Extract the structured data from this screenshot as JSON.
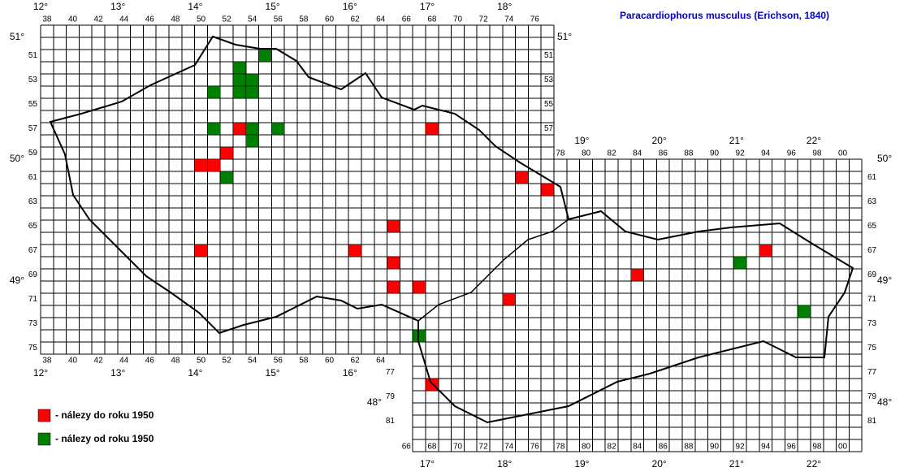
{
  "title": "Paracardiophorus musculus (Erichson, 1840)",
  "columns_top_cz": [
    "38",
    "40",
    "42",
    "44",
    "46",
    "48",
    "50",
    "52",
    "54",
    "56",
    "58",
    "60",
    "62",
    "64",
    "66",
    "68",
    "70",
    "72",
    "74",
    "76"
  ],
  "columns_bottom_cz": [
    "38",
    "40",
    "42",
    "44",
    "46",
    "48",
    "50",
    "52",
    "54",
    "56",
    "58",
    "60",
    "62",
    "64"
  ],
  "columns_top_sk": [
    "78",
    "80",
    "82",
    "84",
    "86",
    "88",
    "90",
    "92",
    "94",
    "96",
    "98",
    "00"
  ],
  "columns_bottom_sk": [
    "66",
    "68",
    "70",
    "72",
    "74",
    "76",
    "78",
    "80",
    "82",
    "84",
    "86",
    "88",
    "90",
    "92",
    "94",
    "96",
    "98",
    "00"
  ],
  "rows_left_cz": [
    "51",
    "53",
    "55",
    "57",
    "59",
    "61",
    "63",
    "65",
    "67",
    "69",
    "71",
    "73",
    "75"
  ],
  "rows_right_cz": [
    "51",
    "53",
    "55",
    "57"
  ],
  "rows_left_sk": [
    "77",
    "79",
    "81"
  ],
  "rows_right_sk": [
    "61",
    "63",
    "65",
    "67",
    "69",
    "71",
    "73",
    "75",
    "77",
    "79",
    "81"
  ],
  "longitudes_top": [
    "12°",
    "13°",
    "14°",
    "15°",
    "16°",
    "17°",
    "18°"
  ],
  "longitudes_top_sk": [
    "19°",
    "20°",
    "21°",
    "22°"
  ],
  "longitudes_bottom_cz": [
    "12°",
    "13°",
    "14°",
    "15°",
    "16°"
  ],
  "longitudes_bottom_sk": [
    "17°",
    "18°",
    "19°",
    "20°",
    "21°",
    "22°"
  ],
  "latitudes_left": [
    "51°",
    "50°",
    "49°"
  ],
  "latitude_right_cz": "51°",
  "latitudes_right_sk": [
    "50°",
    "49°",
    "48°"
  ],
  "latitude_left_sk": "48°",
  "legend": [
    {
      "label": "- nálezy do roku 1950",
      "color": "#ff0000"
    },
    {
      "label": "- nálezy od roku 1950",
      "color": "#008000"
    }
  ],
  "records": [
    {
      "col": 68,
      "row": 57,
      "group": 0
    },
    {
      "col": 75,
      "row": 61,
      "group": 0
    },
    {
      "col": 77,
      "row": 62,
      "group": 0
    },
    {
      "col": 53,
      "row": 57,
      "group": 0
    },
    {
      "col": 52,
      "row": 59,
      "group": 0
    },
    {
      "col": 50,
      "row": 60,
      "group": 0
    },
    {
      "col": 51,
      "row": 60,
      "group": 0
    },
    {
      "col": 50,
      "row": 67,
      "group": 0
    },
    {
      "col": 62,
      "row": 67,
      "group": 0
    },
    {
      "col": 65,
      "row": 65,
      "group": 0
    },
    {
      "col": 65,
      "row": 68,
      "group": 0
    },
    {
      "col": 65,
      "row": 70,
      "group": 0
    },
    {
      "col": 67,
      "row": 70,
      "group": 0
    },
    {
      "col": 74,
      "row": 71,
      "group": 0
    },
    {
      "col": 84,
      "row": 69,
      "group": 0
    },
    {
      "col": 94,
      "row": 67,
      "group": 0
    },
    {
      "col": 68,
      "row": 78,
      "group": 0
    },
    {
      "col": 55,
      "row": 51,
      "group": 1
    },
    {
      "col": 53,
      "row": 52,
      "group": 1
    },
    {
      "col": 53,
      "row": 53,
      "group": 1
    },
    {
      "col": 54,
      "row": 53,
      "group": 1
    },
    {
      "col": 53,
      "row": 54,
      "group": 1
    },
    {
      "col": 54,
      "row": 54,
      "group": 1
    },
    {
      "col": 51,
      "row": 54,
      "group": 1
    },
    {
      "col": 51,
      "row": 57,
      "group": 1
    },
    {
      "col": 54,
      "row": 57,
      "group": 1
    },
    {
      "col": 54,
      "row": 58,
      "group": 1
    },
    {
      "col": 56,
      "row": 57,
      "group": 1
    },
    {
      "col": 52,
      "row": 61,
      "group": 1
    },
    {
      "col": 67,
      "row": 74,
      "group": 1
    },
    {
      "col": 92,
      "row": 68,
      "group": 1
    },
    {
      "col": 97,
      "row": 72,
      "group": 1
    }
  ]
}
